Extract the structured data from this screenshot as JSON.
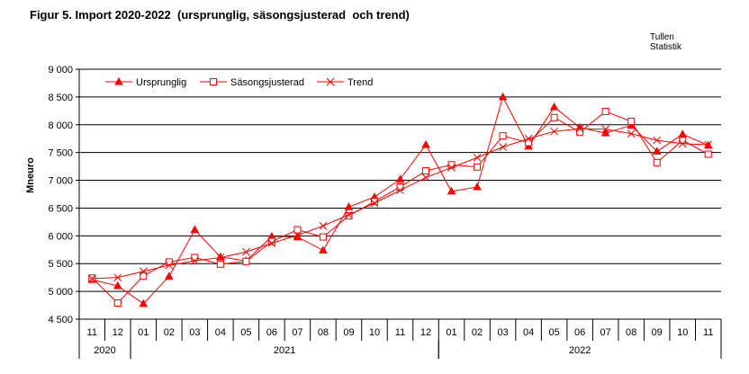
{
  "header": {
    "title": "Figur 5. Import 2020-2022  (ursprunglig, säsongsjusterad  och trend)",
    "source_line1": "Tullen",
    "source_line2": "Statistik"
  },
  "chart_data": {
    "type": "line",
    "title": "Figur 5. Import 2020-2022  (ursprunglig, säsongsjusterad  och trend)",
    "xlabel": "",
    "ylabel": "Mneuro",
    "ylim": [
      4500,
      9000
    ],
    "yticks": [
      4500,
      5000,
      5500,
      6000,
      6500,
      7000,
      7500,
      8000,
      8500,
      9000
    ],
    "ytick_labels": [
      "4 500",
      "5 000",
      "5 500",
      "6 000",
      "6 500",
      "7 000",
      "7 500",
      "8 000",
      "8 500",
      "9 000"
    ],
    "grid": "horizontal",
    "legend_position": "top-left",
    "categories": [
      "11",
      "12",
      "01",
      "02",
      "03",
      "04",
      "05",
      "06",
      "07",
      "08",
      "09",
      "10",
      "11",
      "12",
      "01",
      "02",
      "03",
      "04",
      "05",
      "06",
      "07",
      "08",
      "09",
      "10",
      "11"
    ],
    "year_groups": [
      {
        "label": "2020",
        "start": 0,
        "end": 1
      },
      {
        "label": "2021",
        "start": 2,
        "end": 13
      },
      {
        "label": "2022",
        "start": 14,
        "end": 24
      }
    ],
    "series": [
      {
        "name": "Ursprunglig",
        "color": "#ff0000",
        "marker": "triangle-filled",
        "values": [
          5210,
          5100,
          4780,
          5270,
          6110,
          5620,
          5550,
          5990,
          5980,
          5740,
          6520,
          6700,
          7020,
          7640,
          6800,
          6880,
          8500,
          7610,
          8320,
          7950,
          7850,
          7990,
          7520,
          7830,
          7630
        ]
      },
      {
        "name": "Säsongsjusterad",
        "color": "#ff0000",
        "marker": "square-open",
        "values": [
          5240,
          4790,
          5280,
          5530,
          5610,
          5490,
          5540,
          5900,
          6110,
          5980,
          6360,
          6620,
          6880,
          7170,
          7280,
          7240,
          7800,
          7680,
          8130,
          7870,
          8240,
          8060,
          7320,
          7720,
          7470
        ]
      },
      {
        "name": "Trend",
        "color": "#ff0000",
        "marker": "x",
        "values": [
          5230,
          5250,
          5360,
          5470,
          5550,
          5610,
          5710,
          5870,
          6010,
          6180,
          6380,
          6590,
          6820,
          7050,
          7230,
          7410,
          7600,
          7750,
          7880,
          7930,
          7920,
          7840,
          7720,
          7660,
          7640
        ]
      }
    ]
  }
}
